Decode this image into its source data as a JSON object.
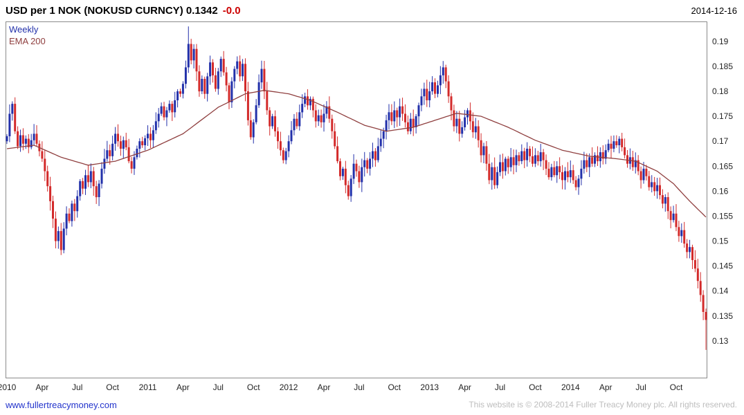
{
  "header": {
    "title": "USD per 1 NOK (NOKUSD CURNCY) 0.1342",
    "change": "-0.0",
    "date": "2014-12-16"
  },
  "legend": {
    "series": "Weekly",
    "overlay": "EMA 200"
  },
  "footer": {
    "link": "www.fullertreacymoney.com",
    "copyright": "This website is © 2008-2014 Fuller Treacy Money plc. All rights reserved."
  },
  "colors": {
    "up": "#2230aa",
    "down": "#d32a2a",
    "ema": "#8f3f3f",
    "change": "#cc0000",
    "link": "#2233cc",
    "axis_text": "#222222",
    "border": "#8a8a8a",
    "copyright_text": "#bdbdbd"
  },
  "chart_data": {
    "type": "candlestick",
    "title": "USD per 1 NOK (NOKUSD CURNCY)",
    "interval": "Weekly",
    "overlay": "EMA 200",
    "last_price": 0.1342,
    "change_label": "-0.0",
    "ylim": [
      0.1225,
      0.194
    ],
    "grid": false,
    "y_ticks": [
      "0.19",
      "0.185",
      "0.18",
      "0.175",
      "0.17",
      "0.165",
      "0.16",
      "0.155",
      "0.15",
      "0.145",
      "0.14",
      "0.135",
      "0.13"
    ],
    "x_ticks": [
      {
        "label": "2010",
        "week": 0
      },
      {
        "label": "Apr",
        "week": 13
      },
      {
        "label": "Jul",
        "week": 26
      },
      {
        "label": "Oct",
        "week": 39
      },
      {
        "label": "2011",
        "week": 52
      },
      {
        "label": "Apr",
        "week": 65
      },
      {
        "label": "Jul",
        "week": 78
      },
      {
        "label": "Oct",
        "week": 91
      },
      {
        "label": "2012",
        "week": 104
      },
      {
        "label": "Apr",
        "week": 117
      },
      {
        "label": "Jul",
        "week": 130
      },
      {
        "label": "Oct",
        "week": 143
      },
      {
        "label": "2013",
        "week": 156
      },
      {
        "label": "Apr",
        "week": 169
      },
      {
        "label": "Jul",
        "week": 182
      },
      {
        "label": "Oct",
        "week": 195
      },
      {
        "label": "2014",
        "week": 208
      },
      {
        "label": "Apr",
        "week": 221
      },
      {
        "label": "Jul",
        "week": 234
      },
      {
        "label": "Oct",
        "week": 247
      }
    ],
    "first_open": 0.17,
    "weekly_closes": [
      0.171,
      0.1755,
      0.1775,
      0.172,
      0.169,
      0.1712,
      0.1695,
      0.1705,
      0.1688,
      0.1702,
      0.1715,
      0.1695,
      0.168,
      0.1665,
      0.164,
      0.161,
      0.158,
      0.1545,
      0.15,
      0.152,
      0.1482,
      0.1525,
      0.1555,
      0.154,
      0.1575,
      0.156,
      0.159,
      0.162,
      0.1605,
      0.1632,
      0.1618,
      0.164,
      0.161,
      0.1588,
      0.1615,
      0.1645,
      0.1665,
      0.1682,
      0.167,
      0.1695,
      0.1715,
      0.17,
      0.1685,
      0.1702,
      0.1688,
      0.166,
      0.1645,
      0.1668,
      0.1685,
      0.17,
      0.1692,
      0.1706,
      0.1715,
      0.1702,
      0.1722,
      0.174,
      0.1755,
      0.177,
      0.1748,
      0.1762,
      0.1775,
      0.1758,
      0.1782,
      0.18,
      0.1795,
      0.1815,
      0.1848,
      0.1895,
      0.1862,
      0.1885,
      0.184,
      0.18,
      0.1825,
      0.1795,
      0.183,
      0.1858,
      0.1832,
      0.1805,
      0.184,
      0.1865,
      0.1838,
      0.1812,
      0.1778,
      0.182,
      0.1845,
      0.186,
      0.183,
      0.1855,
      0.18,
      0.1742,
      0.1708,
      0.1738,
      0.1772,
      0.1818,
      0.1845,
      0.18,
      0.1762,
      0.173,
      0.175,
      0.172,
      0.17,
      0.1682,
      0.1662,
      0.168,
      0.17,
      0.1722,
      0.1745,
      0.173,
      0.1758,
      0.1775,
      0.179,
      0.1772,
      0.1785,
      0.1762,
      0.174,
      0.1752,
      0.1738,
      0.1755,
      0.177,
      0.1745,
      0.172,
      0.169,
      0.166,
      0.163,
      0.1645,
      0.1612,
      0.159,
      0.1625,
      0.1655,
      0.164,
      0.1618,
      0.1648,
      0.1662,
      0.1645,
      0.1665,
      0.168,
      0.1662,
      0.169,
      0.1705,
      0.172,
      0.1742,
      0.1758,
      0.174,
      0.1762,
      0.1748,
      0.177,
      0.1755,
      0.1738,
      0.172,
      0.1745,
      0.1728,
      0.175,
      0.1772,
      0.179,
      0.1805,
      0.1782,
      0.18,
      0.1818,
      0.1795,
      0.1812,
      0.1832,
      0.1848,
      0.182,
      0.179,
      0.1762,
      0.173,
      0.1745,
      0.1715,
      0.1728,
      0.1748,
      0.1762,
      0.174,
      0.1718,
      0.173,
      0.1702,
      0.1672,
      0.169,
      0.1655,
      0.1622,
      0.1648,
      0.1612,
      0.1638,
      0.1658,
      0.164,
      0.1665,
      0.1648,
      0.1668,
      0.1652,
      0.1672,
      0.166,
      0.168,
      0.1662,
      0.1685,
      0.167,
      0.1655,
      0.1672,
      0.166,
      0.1678,
      0.1662,
      0.1645,
      0.1628,
      0.1648,
      0.1632,
      0.165,
      0.1638,
      0.1622,
      0.164,
      0.1628,
      0.1642,
      0.1622,
      0.1608,
      0.1625,
      0.1645,
      0.1662,
      0.1648,
      0.1668,
      0.1655,
      0.1672,
      0.166,
      0.1678,
      0.1665,
      0.1682,
      0.1695,
      0.1685,
      0.17,
      0.1692,
      0.1705,
      0.1688,
      0.1672,
      0.1655,
      0.1668,
      0.1648,
      0.1662,
      0.164,
      0.1622,
      0.1645,
      0.163,
      0.1608,
      0.1618,
      0.16,
      0.1612,
      0.1592,
      0.1575,
      0.1588,
      0.156,
      0.1542,
      0.1555,
      0.1528,
      0.151,
      0.1522,
      0.1495,
      0.1478,
      0.1488,
      0.1462,
      0.1445,
      0.142,
      0.1392,
      0.1358,
      0.1342
    ],
    "wick_overrides": [
      {
        "week": 20,
        "low": 0.1472
      },
      {
        "week": 67,
        "high": 0.193
      },
      {
        "week": 258,
        "low": 0.1282
      }
    ],
    "ema_anchors": [
      [
        0,
        0.1685
      ],
      [
        10,
        0.1692
      ],
      [
        20,
        0.1668
      ],
      [
        30,
        0.1652
      ],
      [
        40,
        0.166
      ],
      [
        52,
        0.1682
      ],
      [
        65,
        0.1715
      ],
      [
        78,
        0.1768
      ],
      [
        88,
        0.1795
      ],
      [
        95,
        0.1802
      ],
      [
        104,
        0.1795
      ],
      [
        112,
        0.1782
      ],
      [
        122,
        0.1758
      ],
      [
        132,
        0.1732
      ],
      [
        140,
        0.172
      ],
      [
        150,
        0.1728
      ],
      [
        158,
        0.1742
      ],
      [
        166,
        0.1756
      ],
      [
        175,
        0.175
      ],
      [
        185,
        0.1728
      ],
      [
        195,
        0.1702
      ],
      [
        205,
        0.1682
      ],
      [
        215,
        0.167
      ],
      [
        225,
        0.1665
      ],
      [
        232,
        0.166
      ],
      [
        240,
        0.164
      ],
      [
        246,
        0.1615
      ],
      [
        252,
        0.158
      ],
      [
        258,
        0.1548
      ]
    ]
  }
}
